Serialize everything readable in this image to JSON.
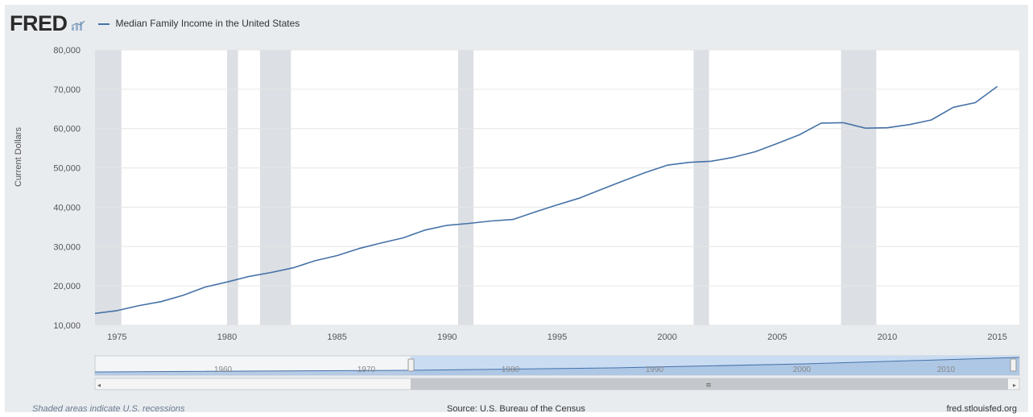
{
  "header": {
    "logo": "FRED",
    "legend_label": "Median Family Income in the United States"
  },
  "footer": {
    "note": "Shaded areas indicate U.S. recessions",
    "source": "Source: U.S. Bureau of the Census",
    "site": "fred.stlouisfed.org"
  },
  "colors": {
    "series": "#4572a7",
    "recession": "#dcdfe3",
    "plot_bg": "#ffffff",
    "frame_bg": "#e9ecef",
    "navigator_fill": "#a9c3e3",
    "navigator_selection": "#c9dcf2"
  },
  "icons": {
    "logo_icon": "chart-icon"
  },
  "chart_data": {
    "type": "line",
    "title": "",
    "xlabel": "",
    "ylabel": "Current Dollars",
    "xlim": [
      1974,
      2016
    ],
    "ylim": [
      10000,
      80000
    ],
    "grid": true,
    "legend": "top-left",
    "x_ticks": [
      1975,
      1980,
      1985,
      1990,
      1995,
      2000,
      2005,
      2010,
      2015
    ],
    "x_tick_labels": [
      "1975",
      "1980",
      "1985",
      "1990",
      "1995",
      "2000",
      "2005",
      "2010",
      "2015"
    ],
    "y_ticks": [
      10000,
      20000,
      30000,
      40000,
      50000,
      60000,
      70000,
      80000
    ],
    "y_tick_labels": [
      "10,000",
      "20,000",
      "30,000",
      "40,000",
      "50,000",
      "60,000",
      "70,000",
      "80,000"
    ],
    "recessions": [
      [
        1973.9,
        1975.2
      ],
      [
        1980.0,
        1980.5
      ],
      [
        1981.5,
        1982.9
      ],
      [
        1990.5,
        1991.2
      ],
      [
        2001.2,
        2001.9
      ],
      [
        2007.9,
        2009.5
      ]
    ],
    "series": [
      {
        "name": "Median Family Income in the United States",
        "x": [
          1974,
          1975,
          1976,
          1977,
          1978,
          1979,
          1980,
          1981,
          1982,
          1983,
          1984,
          1985,
          1986,
          1987,
          1988,
          1989,
          1990,
          1991,
          1992,
          1993,
          1994,
          1995,
          1996,
          1997,
          1998,
          1999,
          2000,
          2001,
          2002,
          2003,
          2004,
          2005,
          2006,
          2007,
          2008,
          2009,
          2010,
          2011,
          2012,
          2013,
          2014,
          2015
        ],
        "values": [
          13000,
          13700,
          15000,
          16000,
          17600,
          19700,
          21000,
          22400,
          23400,
          24600,
          26400,
          27700,
          29500,
          30900,
          32200,
          34200,
          35400,
          35900,
          36500,
          36900,
          38800,
          40600,
          42300,
          44500,
          46700,
          48800,
          50700,
          51400,
          51700,
          52700,
          54100,
          56200,
          58400,
          61400,
          61500,
          60100,
          60200,
          61000,
          62200,
          65400,
          66600,
          70700
        ]
      }
    ],
    "navigator": {
      "x_tick_labels": [
        "1960",
        "1970",
        "1980",
        "1990",
        "2000",
        "2010"
      ]
    }
  }
}
